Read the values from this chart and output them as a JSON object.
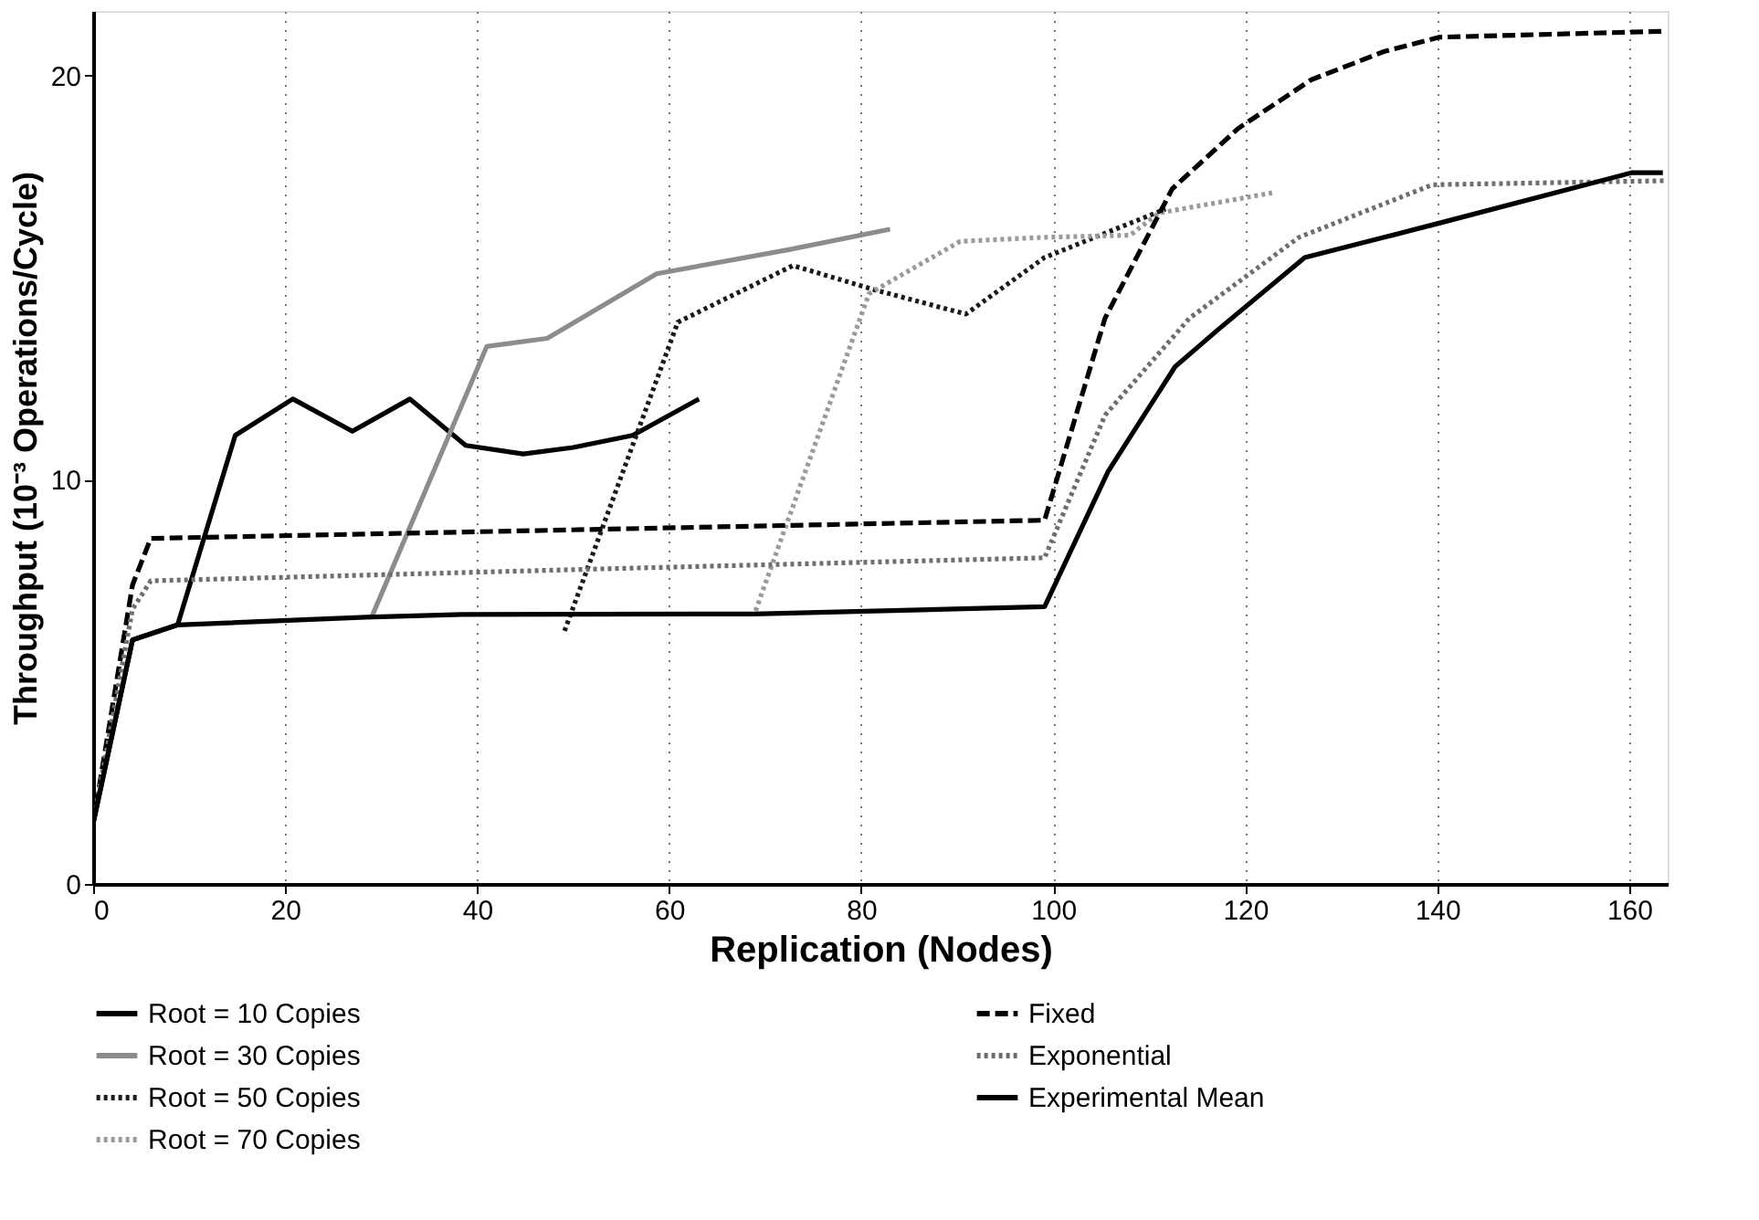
{
  "chart_data": {
    "type": "line",
    "xlabel": "Replication (Nodes)",
    "ylabel": "Throughput (10⁻³ Operations/Cycle)",
    "xlim": [
      0,
      164
    ],
    "ylim": [
      0,
      21.6
    ],
    "xticks": [
      0,
      20,
      40,
      60,
      80,
      100,
      120,
      140,
      160
    ],
    "yticks": [
      0,
      10,
      20
    ],
    "grid": "x",
    "legend": "bottom",
    "marker": "none",
    "series": [
      {
        "name": "Root = 10 Copies",
        "color": "#000000",
        "line_style": "solid",
        "x": [
          0,
          4.1,
          8.8,
          14.8,
          20.8,
          27.0,
          33.0,
          38.8,
          44.8,
          50,
          56.2,
          63.1
        ],
        "values": [
          1.5,
          6.04,
          6.41,
          11.1,
          12.0,
          11.2,
          12.0,
          10.85,
          10.64,
          10.8,
          11.1,
          12.0
        ]
      },
      {
        "name": "Root = 30 Copies",
        "color": "#8c8c8c",
        "line_style": "solid",
        "x": [
          29.0,
          41.0,
          47.3,
          58.7,
          72.6,
          83.0
        ],
        "values": [
          6.6,
          13.3,
          13.5,
          15.1,
          15.7,
          16.2
        ]
      },
      {
        "name": "Root = 50 Copies",
        "color": "#1a1a1a",
        "line_style": "dotted",
        "x": [
          49.1,
          60.9,
          72.9,
          81.4,
          90.9,
          99.1,
          111.7
        ],
        "values": [
          6.26,
          13.9,
          15.3,
          14.7,
          14.1,
          15.5,
          16.7
        ]
      },
      {
        "name": "Root = 70 Copies",
        "color": "#9a9a9a",
        "line_style": "dotted",
        "x": [
          69.0,
          80.8,
          90.3,
          99.1,
          108,
          111,
          122.8
        ],
        "values": [
          6.76,
          14.6,
          15.9,
          16.0,
          16.05,
          16.6,
          17.1
        ]
      },
      {
        "name": "Fixed",
        "color": "#000000",
        "line_style": "dashed",
        "x": [
          0,
          4.1,
          6.0,
          53.7,
          99.1,
          105.4,
          112.4,
          119.3,
          126.9,
          134.5,
          140.2,
          163.9
        ],
        "values": [
          1.5,
          7.4,
          8.55,
          8.78,
          9.0,
          14.0,
          17.2,
          18.7,
          19.9,
          20.6,
          20.95,
          21.1
        ]
      },
      {
        "name": "Exponential",
        "color": "#6e6e6e",
        "line_style": "dotted",
        "x": [
          0,
          4.1,
          6.0,
          53.7,
          99.1,
          105.4,
          114.2,
          125.6,
          139.5,
          163.9
        ],
        "values": [
          1.5,
          6.8,
          7.5,
          7.8,
          8.07,
          11.6,
          14.0,
          16.0,
          17.3,
          17.4
        ]
      },
      {
        "name": "Experimental Mean",
        "color": "#000000",
        "line_style": "solid",
        "x": [
          0,
          4.1,
          8.8,
          28.4,
          38.5,
          68.8,
          99.1,
          105.7,
          112.7,
          117.1,
          126.2,
          134.5,
          140.2,
          160.3,
          163.5
        ],
        "values": [
          1.5,
          6.04,
          6.41,
          6.6,
          6.67,
          6.68,
          6.86,
          10.2,
          12.8,
          13.7,
          15.5,
          16.0,
          16.35,
          17.6,
          17.6
        ]
      }
    ]
  }
}
